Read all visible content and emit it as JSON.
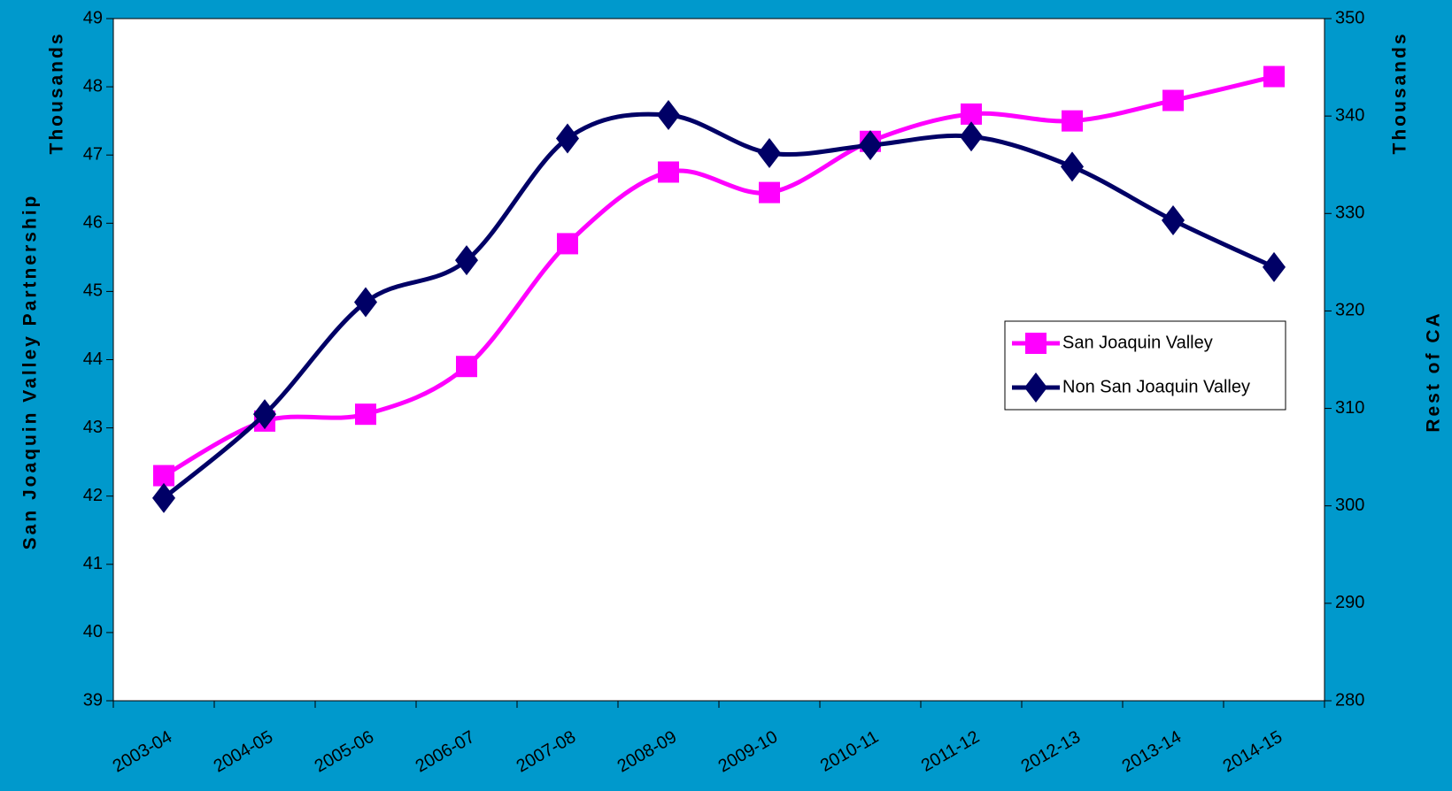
{
  "chart_data": {
    "type": "line",
    "y_label": "San Joaquin Valley Partnership",
    "y_unit": "Thousands",
    "y2_label": "Rest of CA",
    "y2_unit": "Thousands",
    "categories": [
      "2003-04",
      "2004-05",
      "2005-06",
      "2006-07",
      "2007-08",
      "2008-09",
      "2009-10",
      "2010-11",
      "2011-12",
      "2012-13",
      "2013-14",
      "2014-15"
    ],
    "series": [
      {
        "name": "San Joaquin Valley",
        "color": "#ff00ff",
        "marker": "square",
        "values": [
          42.3,
          43.1,
          43.2,
          43.9,
          45.7,
          46.75,
          46.45,
          47.2,
          47.6,
          47.5,
          47.8,
          48.15
        ]
      },
      {
        "name": "Non San Joaquin Valley",
        "color": "#000066",
        "marker": "diamond",
        "axis": "y2",
        "values": [
          300.8,
          309.4,
          320.9,
          325.2,
          337.7,
          340.1,
          336.2,
          337.0,
          337.9,
          334.8,
          329.3,
          324.5
        ]
      }
    ],
    "ylim": [
      39,
      49
    ],
    "yticks": [
      39,
      40,
      41,
      42,
      43,
      44,
      45,
      46,
      47,
      48,
      49
    ],
    "y2lim": [
      280,
      350
    ],
    "y2ticks": [
      280,
      290,
      300,
      310,
      320,
      330,
      340,
      350
    ],
    "legend": "right",
    "grid": false
  }
}
